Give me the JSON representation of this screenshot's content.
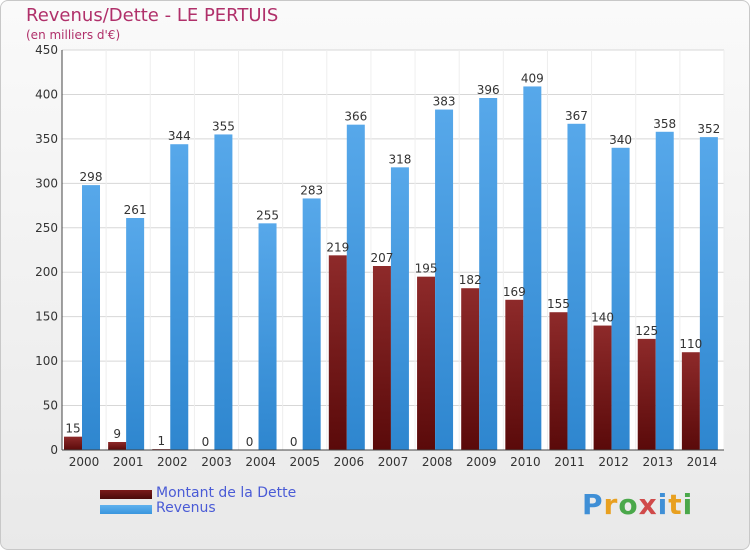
{
  "header": {
    "title": "Revenus/Dette - LE PERTUIS",
    "subtitle": "(en milliers d'€)"
  },
  "legend": {
    "items": [
      {
        "label": "Montant de la Dette",
        "color": "#7a1a1a"
      },
      {
        "label": "Revenus",
        "color": "#3a95dd"
      }
    ]
  },
  "logo": {
    "text": "Proxiti"
  },
  "colors": {
    "dette": "#7a1a1a",
    "revenus": "#3a95dd",
    "grid": "#d7d7d7",
    "title": "#b0306a"
  },
  "chart_data": {
    "type": "bar",
    "title": "Revenus/Dette - LE PERTUIS",
    "subtitle": "(en milliers d'€)",
    "categories": [
      "2000",
      "2001",
      "2002",
      "2003",
      "2004",
      "2005",
      "2006",
      "2007",
      "2008",
      "2009",
      "2010",
      "2011",
      "2012",
      "2013",
      "2014"
    ],
    "series": [
      {
        "name": "Montant de la Dette",
        "values": [
          15,
          9,
          1,
          0,
          0,
          0,
          219,
          207,
          195,
          182,
          169,
          155,
          140,
          125,
          110
        ]
      },
      {
        "name": "Revenus",
        "values": [
          298,
          261,
          344,
          355,
          255,
          283,
          366,
          318,
          383,
          396,
          409,
          367,
          340,
          358,
          352
        ]
      }
    ],
    "ylim": [
      0,
      450
    ],
    "yticks": [
      0,
      50,
      100,
      150,
      200,
      250,
      300,
      350,
      400,
      450
    ],
    "grid": true,
    "legend": "bottom-left"
  }
}
